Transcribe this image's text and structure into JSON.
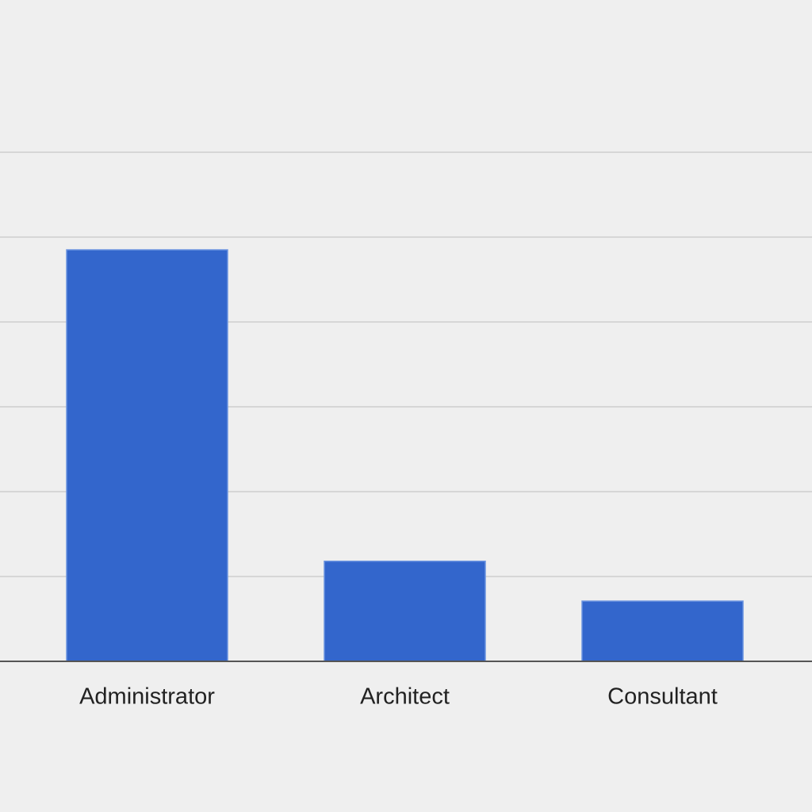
{
  "chart_data": {
    "type": "bar",
    "title": "",
    "xlabel": "",
    "ylabel": "",
    "categories": [
      "Administrator",
      "Architect",
      "Consultant"
    ],
    "values": [
      48.5,
      11.8,
      7.1
    ],
    "ylim": [
      0,
      60
    ],
    "gridline_values": [
      0,
      10,
      20,
      30,
      40,
      50,
      60
    ],
    "grid": true,
    "legend": "none",
    "colors": {
      "bar": "#3366cc",
      "bar_edge": "#6a93e0",
      "background": "#efefef",
      "grid": "#d6d6d6",
      "baseline": "#555555",
      "label": "#222222"
    }
  }
}
